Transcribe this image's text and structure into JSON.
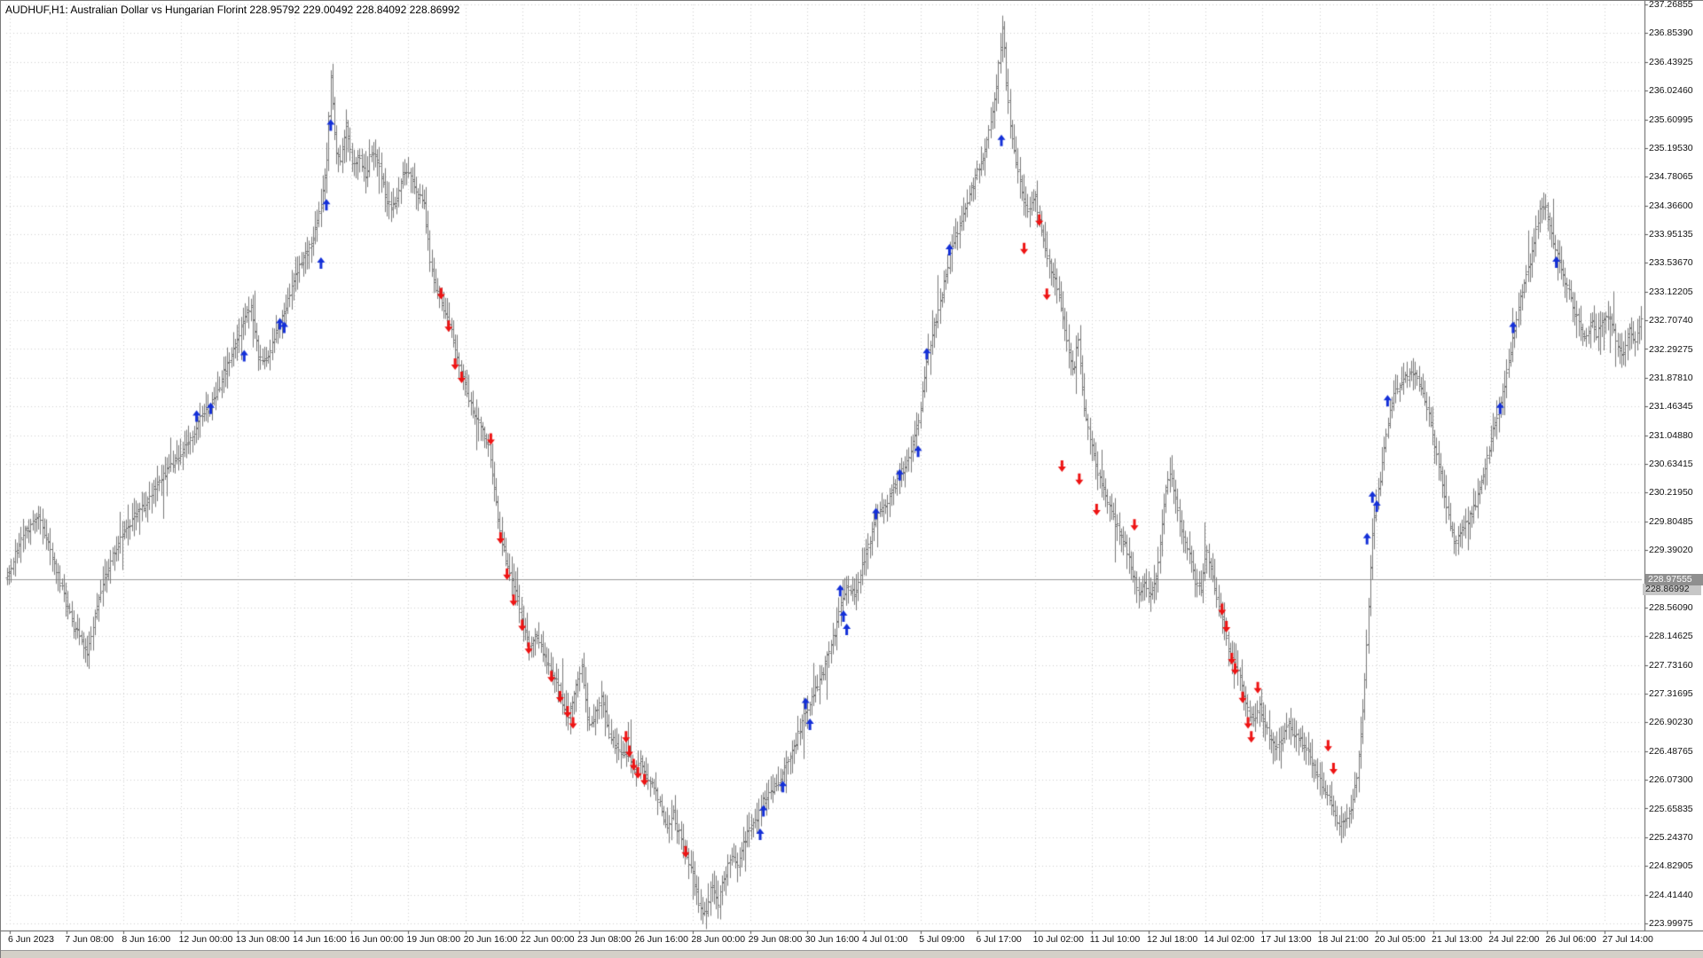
{
  "window": {
    "title_left": "AUDHUF,H1:  Australian Dollar vs Hungarian Florint   228.95792 229.00492 228.84092 228.86992"
  },
  "chart_data": {
    "type": "bar",
    "subtype": "ohlc-bars-hourly",
    "symbol": "AUDHUF",
    "timeframe": "H1",
    "title": "AUDHUF,H1: Australian Dollar vs Hungarian Florint",
    "ohlc_current": {
      "open": "228.95792",
      "high": "229.00492",
      "low": "228.84092",
      "close": "228.86992"
    },
    "price_line": {
      "value": 228.97555,
      "label": "228.97555"
    },
    "bid_tag": {
      "value": 228.86992,
      "label": "228.86992"
    },
    "bar_color": "#787878",
    "grid_color": "#d2d2d2",
    "axis_line_color": "#5a5a5a",
    "price_line_color": "#9a9a9a",
    "up_color": "#1430d8",
    "down_color": "#ee1414",
    "y_axis": {
      "min": 223.99975,
      "max": 237.26855,
      "labels": [
        "237.26855",
        "236.85390",
        "236.43925",
        "236.02460",
        "235.60995",
        "235.19530",
        "234.78065",
        "234.36600",
        "233.95135",
        "233.53670",
        "233.12205",
        "232.70740",
        "232.29275",
        "231.87810",
        "231.46345",
        "231.04880",
        "230.63415",
        "230.21950",
        "229.80485",
        "229.39020",
        "228.97555",
        "228.56090",
        "228.14625",
        "227.73160",
        "227.31695",
        "226.90230",
        "226.48765",
        "226.07300",
        "225.65835",
        "225.24370",
        "224.82905",
        "224.41440",
        "223.99975"
      ]
    },
    "x_axis": {
      "labels": [
        "6 Jun 2023",
        "7 Jun 08:00",
        "8 Jun 16:00",
        "12 Jun 00:00",
        "13 Jun 08:00",
        "14 Jun 16:00",
        "16 Jun 00:00",
        "19 Jun 08:00",
        "20 Jun 16:00",
        "22 Jun 00:00",
        "23 Jun 08:00",
        "26 Jun 16:00",
        "28 Jun 00:00",
        "29 Jun 08:00",
        "30 Jun 16:00",
        "4 Jul 01:00",
        "5 Jul 09:00",
        "6 Jul 17:00",
        "10 Jul 02:00",
        "11 Jul 10:00",
        "12 Jul 18:00",
        "14 Jul 02:00",
        "17 Jul 13:00",
        "18 Jul 21:00",
        "20 Jul 05:00",
        "21 Jul 13:00",
        "24 Jul 22:00",
        "26 Jul 06:00",
        "27 Jul 14:00"
      ]
    },
    "x_domain": [
      0,
      1512
    ],
    "series_anchors": [
      [
        0,
        229.0
      ],
      [
        15,
        229.6
      ],
      [
        30,
        229.9
      ],
      [
        50,
        228.9
      ],
      [
        62,
        228.3
      ],
      [
        75,
        227.9
      ],
      [
        90,
        229.0
      ],
      [
        110,
        229.7
      ],
      [
        130,
        230.1
      ],
      [
        150,
        230.6
      ],
      [
        168,
        230.9
      ],
      [
        178,
        231.3
      ],
      [
        190,
        231.5
      ],
      [
        200,
        231.9
      ],
      [
        210,
        232.3
      ],
      [
        218,
        232.7
      ],
      [
        226,
        232.9
      ],
      [
        234,
        232.1
      ],
      [
        242,
        232.2
      ],
      [
        250,
        232.6
      ],
      [
        258,
        232.9
      ],
      [
        266,
        233.3
      ],
      [
        274,
        233.6
      ],
      [
        282,
        233.8
      ],
      [
        290,
        234.3
      ],
      [
        296,
        235.0
      ],
      [
        300,
        236.3
      ],
      [
        304,
        235.2
      ],
      [
        309,
        235.0
      ],
      [
        314,
        235.5
      ],
      [
        320,
        234.9
      ],
      [
        326,
        235.1
      ],
      [
        332,
        234.8
      ],
      [
        338,
        235.2
      ],
      [
        344,
        235.0
      ],
      [
        350,
        234.5
      ],
      [
        356,
        234.3
      ],
      [
        362,
        234.5
      ],
      [
        368,
        234.9
      ],
      [
        374,
        234.8
      ],
      [
        380,
        234.5
      ],
      [
        386,
        234.4
      ],
      [
        392,
        233.5
      ],
      [
        398,
        233.1
      ],
      [
        404,
        232.9
      ],
      [
        410,
        232.6
      ],
      [
        416,
        232.2
      ],
      [
        422,
        231.9
      ],
      [
        428,
        231.6
      ],
      [
        434,
        231.3
      ],
      [
        440,
        231.1
      ],
      [
        446,
        230.9
      ],
      [
        451,
        230.3
      ],
      [
        456,
        229.7
      ],
      [
        461,
        229.3
      ],
      [
        466,
        229.0
      ],
      [
        472,
        228.7
      ],
      [
        478,
        228.3
      ],
      [
        484,
        228.0
      ],
      [
        490,
        228.2
      ],
      [
        496,
        227.9
      ],
      [
        502,
        227.7
      ],
      [
        508,
        227.5
      ],
      [
        514,
        227.2
      ],
      [
        520,
        227.0
      ],
      [
        526,
        227.4
      ],
      [
        532,
        227.7
      ],
      [
        538,
        226.9
      ],
      [
        544,
        227.0
      ],
      [
        550,
        227.3
      ],
      [
        556,
        226.8
      ],
      [
        562,
        226.6
      ],
      [
        568,
        226.5
      ],
      [
        574,
        226.4
      ],
      [
        580,
        226.2
      ],
      [
        586,
        226.4
      ],
      [
        592,
        226.1
      ],
      [
        598,
        226.0
      ],
      [
        604,
        225.7
      ],
      [
        610,
        225.4
      ],
      [
        616,
        225.6
      ],
      [
        622,
        225.3
      ],
      [
        628,
        225.0
      ],
      [
        634,
        224.8
      ],
      [
        640,
        224.3
      ],
      [
        646,
        224.1
      ],
      [
        652,
        224.6
      ],
      [
        658,
        224.3
      ],
      [
        664,
        224.7
      ],
      [
        670,
        225.0
      ],
      [
        676,
        224.8
      ],
      [
        682,
        225.2
      ],
      [
        688,
        225.4
      ],
      [
        694,
        225.5
      ],
      [
        700,
        225.8
      ],
      [
        706,
        225.9
      ],
      [
        712,
        226.0
      ],
      [
        718,
        226.2
      ],
      [
        724,
        226.4
      ],
      [
        730,
        226.6
      ],
      [
        736,
        227.0
      ],
      [
        742,
        227.1
      ],
      [
        748,
        227.4
      ],
      [
        754,
        227.6
      ],
      [
        760,
        227.9
      ],
      [
        766,
        228.2
      ],
      [
        772,
        228.7
      ],
      [
        778,
        228.9
      ],
      [
        784,
        228.7
      ],
      [
        790,
        229.1
      ],
      [
        796,
        229.4
      ],
      [
        802,
        229.8
      ],
      [
        808,
        230.0
      ],
      [
        814,
        230.1
      ],
      [
        820,
        230.3
      ],
      [
        826,
        230.5
      ],
      [
        832,
        230.6
      ],
      [
        838,
        230.9
      ],
      [
        844,
        231.3
      ],
      [
        850,
        232.1
      ],
      [
        856,
        232.5
      ],
      [
        862,
        232.9
      ],
      [
        868,
        233.3
      ],
      [
        874,
        233.8
      ],
      [
        880,
        234.0
      ],
      [
        886,
        234.3
      ],
      [
        892,
        234.6
      ],
      [
        898,
        234.9
      ],
      [
        904,
        235.1
      ],
      [
        909,
        235.5
      ],
      [
        914,
        235.9
      ],
      [
        918,
        236.5
      ],
      [
        921,
        237.0
      ],
      [
        924,
        236.2
      ],
      [
        928,
        235.5
      ],
      [
        932,
        235.1
      ],
      [
        936,
        234.8
      ],
      [
        941,
        234.4
      ],
      [
        946,
        234.3
      ],
      [
        951,
        234.5
      ],
      [
        956,
        234.1
      ],
      [
        961,
        233.7
      ],
      [
        966,
        233.4
      ],
      [
        971,
        233.2
      ],
      [
        976,
        232.8
      ],
      [
        981,
        232.3
      ],
      [
        986,
        232.0
      ],
      [
        991,
        232.4
      ],
      [
        996,
        231.5
      ],
      [
        1001,
        231.1
      ],
      [
        1006,
        230.7
      ],
      [
        1011,
        230.4
      ],
      [
        1016,
        230.2
      ],
      [
        1022,
        229.9
      ],
      [
        1028,
        229.7
      ],
      [
        1034,
        229.5
      ],
      [
        1040,
        229.1
      ],
      [
        1046,
        228.8
      ],
      [
        1052,
        228.9
      ],
      [
        1058,
        228.7
      ],
      [
        1064,
        229.1
      ],
      [
        1070,
        230.0
      ],
      [
        1075,
        230.6
      ],
      [
        1080,
        230.2
      ],
      [
        1086,
        229.7
      ],
      [
        1092,
        229.4
      ],
      [
        1098,
        229.0
      ],
      [
        1104,
        228.8
      ],
      [
        1109,
        229.4
      ],
      [
        1114,
        229.1
      ],
      [
        1119,
        228.7
      ],
      [
        1124,
        228.4
      ],
      [
        1129,
        228.0
      ],
      [
        1134,
        227.8
      ],
      [
        1139,
        227.6
      ],
      [
        1144,
        227.3
      ],
      [
        1149,
        227.0
      ],
      [
        1154,
        226.9
      ],
      [
        1158,
        227.2
      ],
      [
        1163,
        226.9
      ],
      [
        1168,
        226.7
      ],
      [
        1173,
        226.5
      ],
      [
        1178,
        226.6
      ],
      [
        1183,
        226.9
      ],
      [
        1188,
        226.8
      ],
      [
        1193,
        226.7
      ],
      [
        1198,
        226.6
      ],
      [
        1203,
        226.5
      ],
      [
        1208,
        226.3
      ],
      [
        1213,
        226.1
      ],
      [
        1218,
        225.9
      ],
      [
        1223,
        225.8
      ],
      [
        1228,
        225.6
      ],
      [
        1233,
        225.4
      ],
      [
        1238,
        225.5
      ],
      [
        1243,
        225.7
      ],
      [
        1248,
        226.1
      ],
      [
        1253,
        226.9
      ],
      [
        1258,
        228.2
      ],
      [
        1262,
        229.5
      ],
      [
        1266,
        230.1
      ],
      [
        1270,
        230.4
      ],
      [
        1274,
        230.9
      ],
      [
        1279,
        231.4
      ],
      [
        1284,
        231.7
      ],
      [
        1289,
        231.8
      ],
      [
        1294,
        231.9
      ],
      [
        1299,
        232.0
      ],
      [
        1304,
        231.9
      ],
      [
        1309,
        231.7
      ],
      [
        1314,
        231.4
      ],
      [
        1319,
        231.0
      ],
      [
        1324,
        230.6
      ],
      [
        1329,
        230.2
      ],
      [
        1334,
        229.8
      ],
      [
        1339,
        229.5
      ],
      [
        1344,
        229.6
      ],
      [
        1349,
        229.8
      ],
      [
        1354,
        229.9
      ],
      [
        1359,
        230.1
      ],
      [
        1364,
        230.4
      ],
      [
        1369,
        230.7
      ],
      [
        1374,
        231.1
      ],
      [
        1379,
        231.4
      ],
      [
        1384,
        231.7
      ],
      [
        1389,
        232.1
      ],
      [
        1394,
        232.6
      ],
      [
        1399,
        233.0
      ],
      [
        1404,
        233.3
      ],
      [
        1409,
        233.6
      ],
      [
        1414,
        234.0
      ],
      [
        1418,
        234.3
      ],
      [
        1422,
        234.4
      ],
      [
        1426,
        234.1
      ],
      [
        1430,
        233.8
      ],
      [
        1435,
        233.6
      ],
      [
        1440,
        233.3
      ],
      [
        1445,
        233.1
      ],
      [
        1450,
        232.8
      ],
      [
        1455,
        232.6
      ],
      [
        1460,
        232.4
      ],
      [
        1465,
        232.7
      ],
      [
        1470,
        232.5
      ],
      [
        1475,
        232.7
      ],
      [
        1480,
        232.8
      ],
      [
        1485,
        232.6
      ],
      [
        1490,
        232.3
      ],
      [
        1495,
        232.2
      ],
      [
        1500,
        232.6
      ],
      [
        1506,
        232.4
      ],
      [
        1512,
        232.8
      ]
    ],
    "signals": {
      "up": [
        [
          176,
          231.32
        ],
        [
          189,
          231.43
        ],
        [
          220,
          232.19
        ],
        [
          253,
          232.65
        ],
        [
          257,
          232.6
        ],
        [
          291,
          233.53
        ],
        [
          296,
          234.37
        ],
        [
          300,
          235.52
        ],
        [
          697,
          225.28
        ],
        [
          700,
          225.62
        ],
        [
          718,
          225.97
        ],
        [
          739,
          227.17
        ],
        [
          743,
          226.87
        ],
        [
          771,
          228.8
        ],
        [
          774,
          228.43
        ],
        [
          777,
          228.24
        ],
        [
          804,
          229.91
        ],
        [
          826,
          230.47
        ],
        [
          843,
          230.81
        ],
        [
          851,
          232.22
        ],
        [
          872,
          233.72
        ],
        [
          920,
          235.3
        ],
        [
          1258,
          229.55
        ],
        [
          1263,
          230.15
        ],
        [
          1267,
          230.02
        ],
        [
          1277,
          231.54
        ],
        [
          1381,
          231.43
        ],
        [
          1393,
          232.6
        ],
        [
          1433,
          233.54
        ]
      ],
      "down": [
        [
          402,
          233.1
        ],
        [
          409,
          232.63
        ],
        [
          415,
          232.08
        ],
        [
          421,
          231.89
        ],
        [
          448,
          231.0
        ],
        [
          457,
          229.57
        ],
        [
          463,
          229.05
        ],
        [
          469,
          228.67
        ],
        [
          477,
          228.31
        ],
        [
          483,
          227.98
        ],
        [
          504,
          227.57
        ],
        [
          512,
          227.28
        ],
        [
          519,
          227.06
        ],
        [
          524,
          226.9
        ],
        [
          573,
          226.7
        ],
        [
          576,
          226.49
        ],
        [
          580,
          226.3
        ],
        [
          584,
          226.18
        ],
        [
          590,
          226.08
        ],
        [
          628,
          225.04
        ],
        [
          941,
          233.75
        ],
        [
          955,
          234.16
        ],
        [
          962,
          233.09
        ],
        [
          976,
          230.61
        ],
        [
          992,
          230.42
        ],
        [
          1008,
          229.98
        ],
        [
          1043,
          229.76
        ],
        [
          1124,
          228.54
        ],
        [
          1128,
          228.29
        ],
        [
          1133,
          227.83
        ],
        [
          1136,
          227.68
        ],
        [
          1143,
          227.27
        ],
        [
          1148,
          226.9
        ],
        [
          1151,
          226.7
        ],
        [
          1157,
          227.41
        ],
        [
          1222,
          226.57
        ],
        [
          1227,
          226.24
        ]
      ]
    }
  }
}
